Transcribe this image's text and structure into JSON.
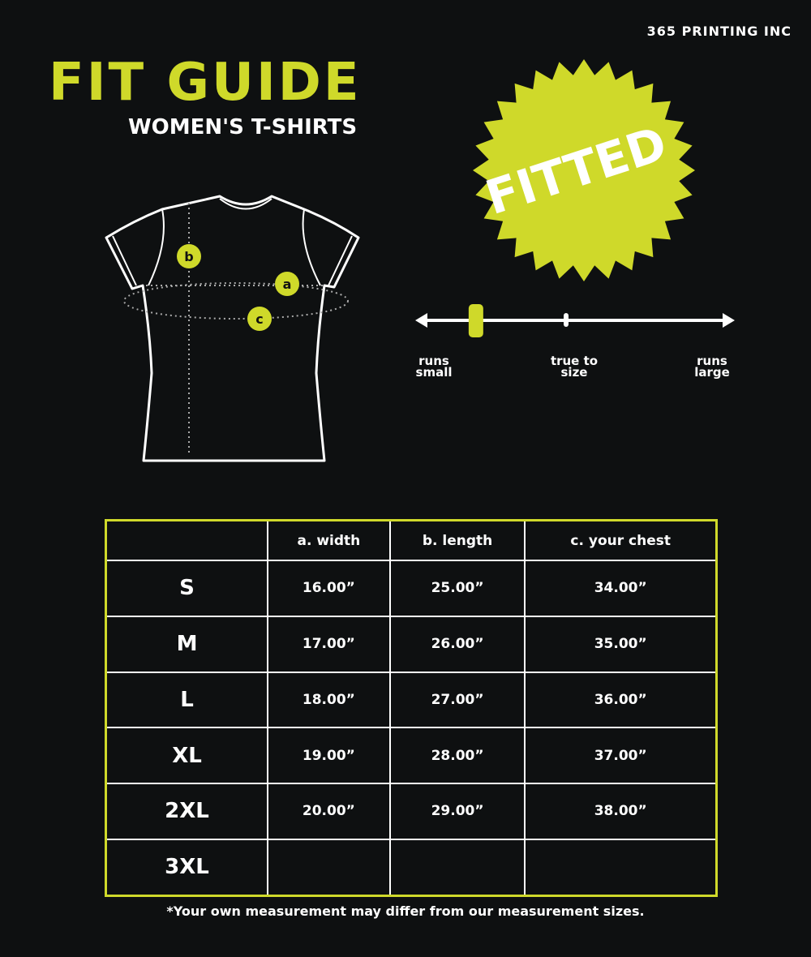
{
  "brand": "365 PRINTING INC",
  "title": "FIT GUIDE",
  "subtitle": "WOMEN'S T-SHIRTS",
  "badge": "FITTED",
  "shirt_markers": [
    "a",
    "b",
    "c"
  ],
  "fit_scale": {
    "labels": [
      "runs\nsmall",
      "true to\nsize",
      "runs\nlarge"
    ],
    "position_percent": 19
  },
  "colors": {
    "accent": "#cfd92a",
    "background": "#0e1011"
  },
  "table": {
    "headers": [
      "",
      "a. width",
      "b. length",
      "c. your chest"
    ],
    "rows": [
      [
        "S",
        "16.00”",
        "25.00”",
        "34.00”"
      ],
      [
        "M",
        "17.00”",
        "26.00”",
        "35.00”"
      ],
      [
        "L",
        "18.00”",
        "27.00”",
        "36.00”"
      ],
      [
        "XL",
        "19.00”",
        "28.00”",
        "37.00”"
      ],
      [
        "2XL",
        "20.00”",
        "29.00”",
        "38.00”"
      ],
      [
        "3XL",
        "",
        "",
        ""
      ]
    ]
  },
  "footnote": "*Your own measurement may differ from our measurement sizes."
}
